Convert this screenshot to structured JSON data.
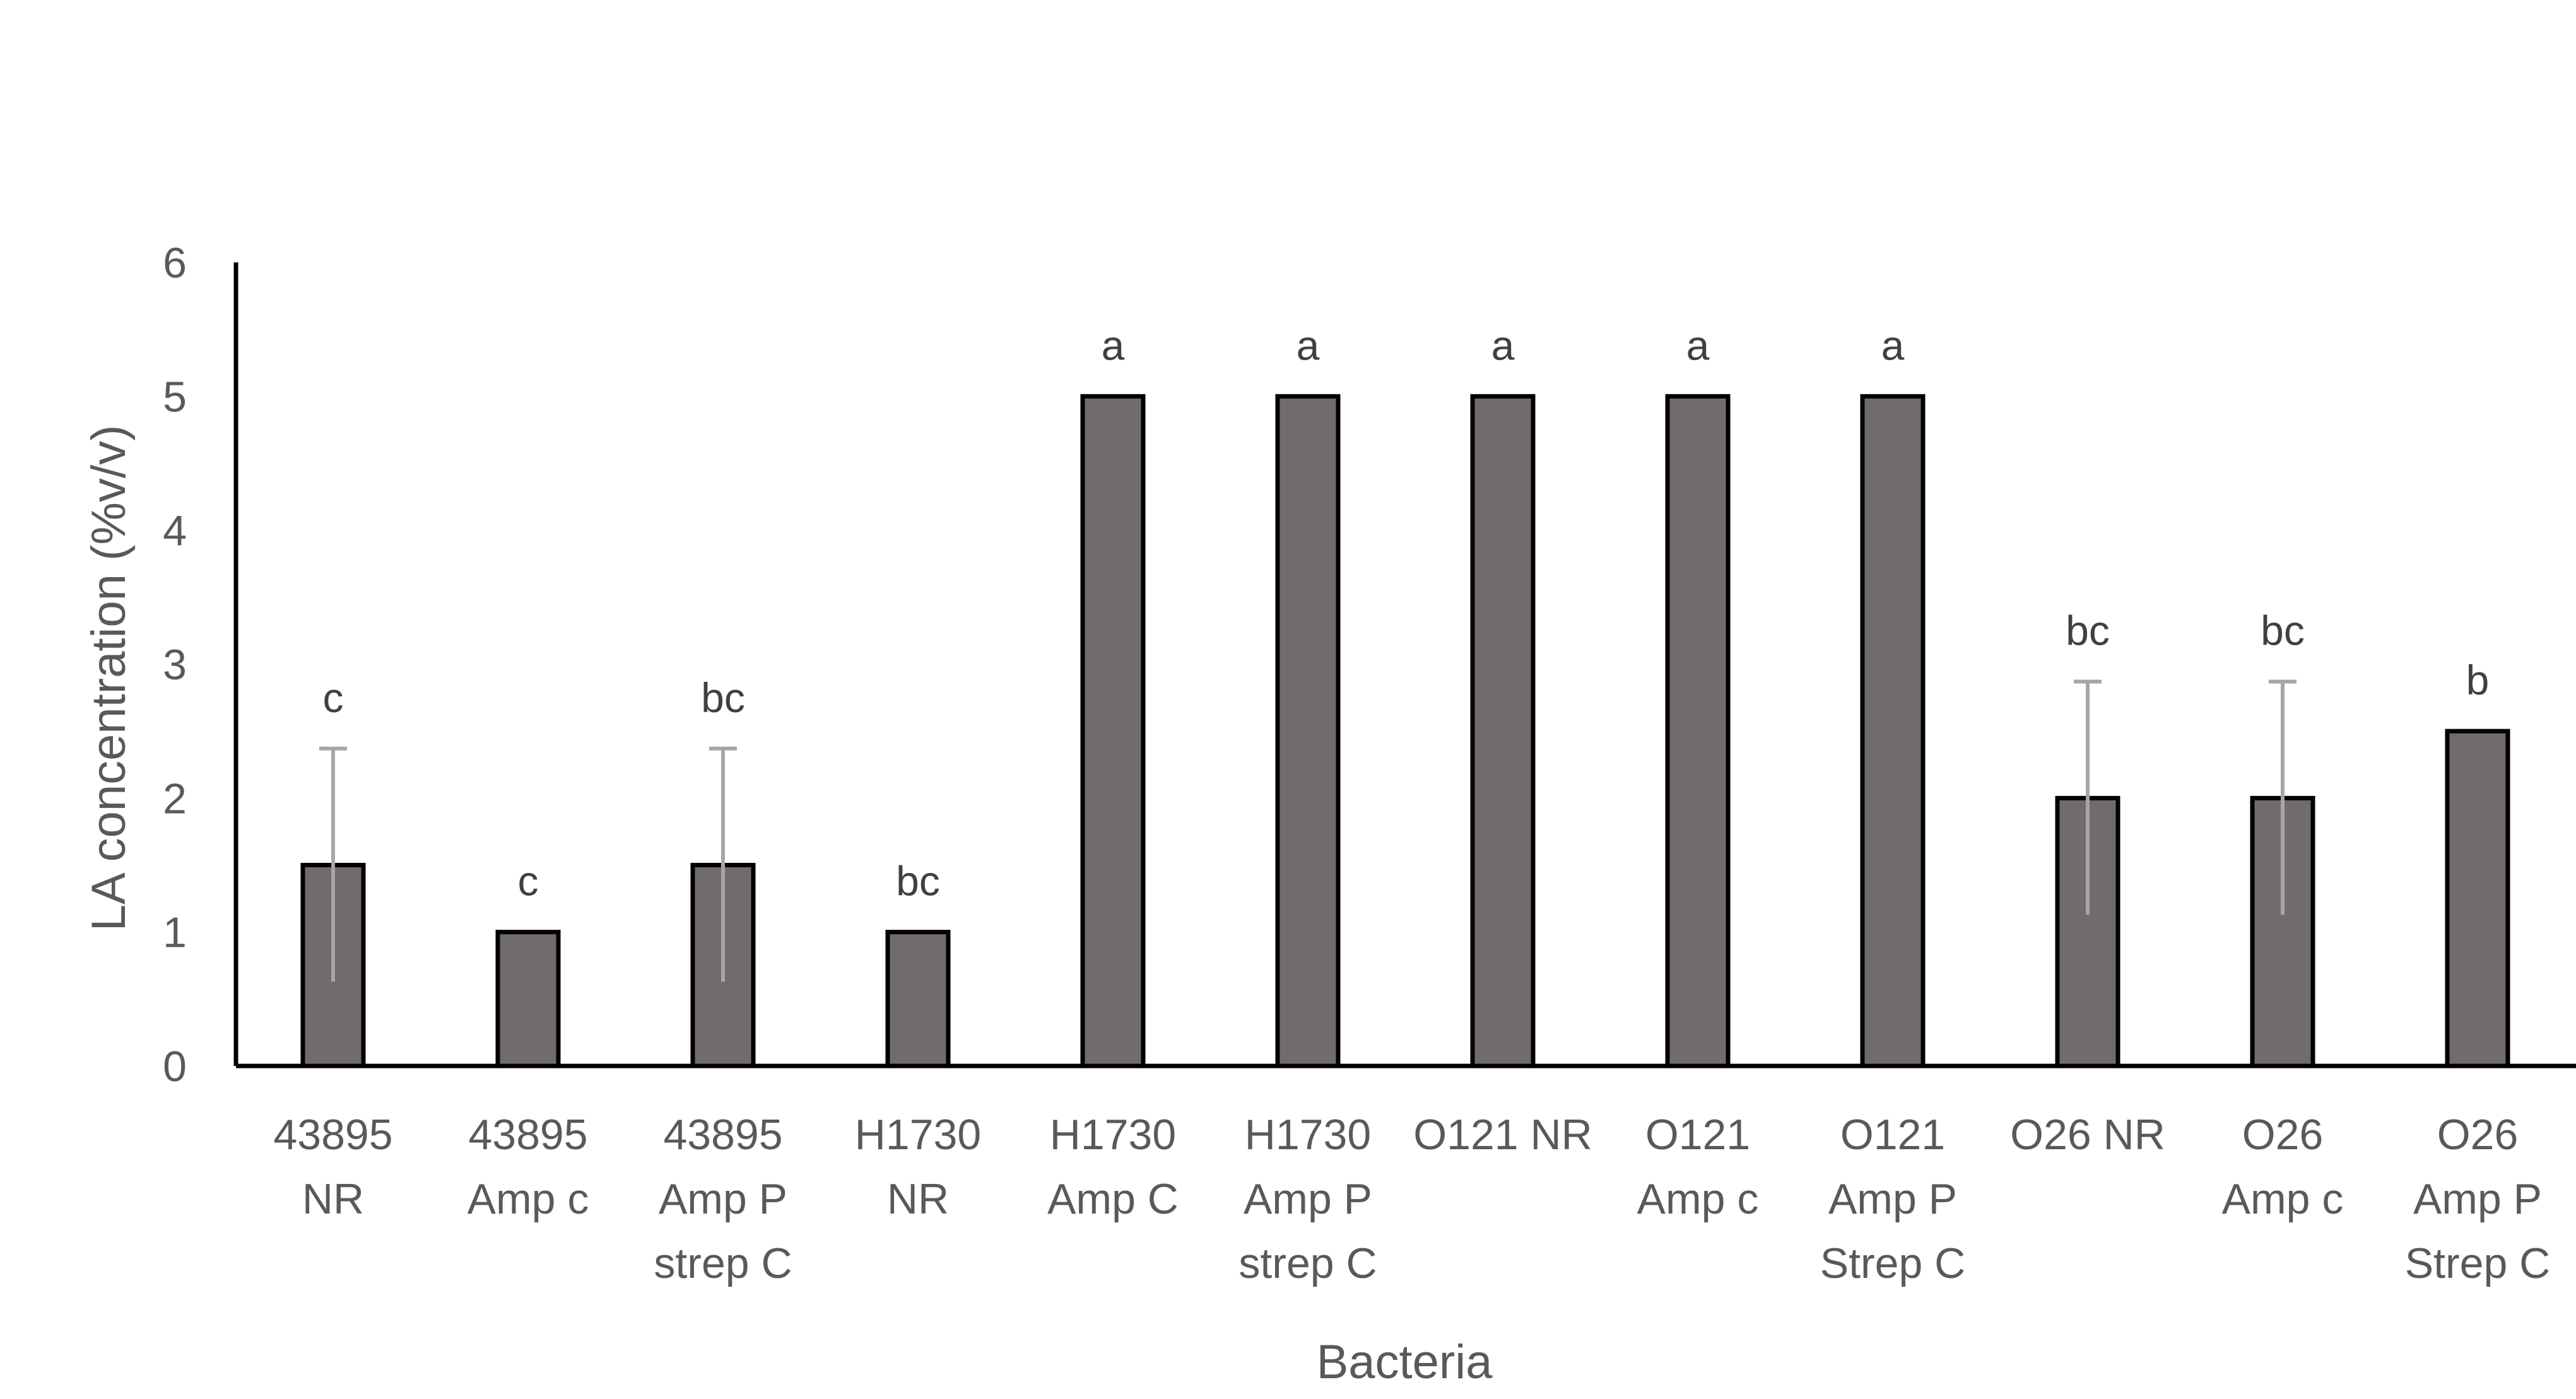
{
  "chart_data": {
    "type": "bar",
    "title": "",
    "xlabel": "Bacteria",
    "ylabel": "LA concentration (%v/v)",
    "ylim": [
      0,
      6
    ],
    "yticks": [
      0,
      1,
      2,
      3,
      4,
      5,
      6
    ],
    "grid": false,
    "legend": "none",
    "bar_color": "#716c6b",
    "categories": [
      [
        "43895",
        "NR"
      ],
      [
        "43895",
        "Amp c"
      ],
      [
        "43895",
        "Amp P",
        "strep C"
      ],
      [
        "H1730",
        "NR"
      ],
      [
        "H1730",
        "Amp C"
      ],
      [
        "H1730",
        "Amp P",
        "strep C"
      ],
      [
        "O121 NR"
      ],
      [
        "O121",
        "Amp c"
      ],
      [
        "O121",
        "Amp P",
        "Strep C"
      ],
      [
        "O26 NR"
      ],
      [
        "O26",
        "Amp c"
      ],
      [
        "O26",
        "Amp P",
        "Strep C"
      ]
    ],
    "values": [
      1.5,
      1.0,
      1.5,
      1.0,
      5.0,
      5.0,
      5.0,
      5.0,
      5.0,
      2.0,
      2.0,
      2.5
    ],
    "error_plus": [
      0.87,
      0,
      0.87,
      0,
      0,
      0,
      0,
      0,
      0,
      0.87,
      0.87,
      0
    ],
    "error_minus": [
      0.87,
      0,
      0.87,
      0,
      0,
      0,
      0,
      0,
      0,
      0.87,
      0.87,
      0
    ],
    "significance": [
      "c",
      "c",
      "bc",
      "bc",
      "a",
      "a",
      "a",
      "a",
      "a",
      "bc",
      "bc",
      "b"
    ]
  }
}
